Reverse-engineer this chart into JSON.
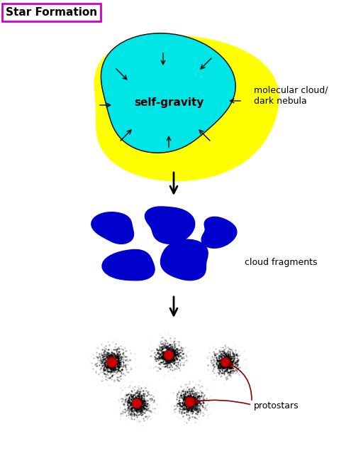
{
  "title": "Star Formation",
  "title_box_color": "#cc00cc",
  "background_color": "#ffffff",
  "yellow_cloud_color": "#ffff00",
  "cyan_cloud_color": "#00e5e5",
  "blue_fragment_color": "#0000cc",
  "protostar_dot_color": "#111111",
  "protostar_core_color": "#cc0000",
  "arrow_color": "#000000",
  "red_arrow_color": "#cc0000",
  "self_gravity_text": "self-gravity",
  "molecular_cloud_text": "molecular cloud/\ndark nebula",
  "cloud_fragments_text": "cloud fragments",
  "protostars_text": "protostars",
  "figsize": [
    4.95,
    6.66
  ],
  "dpi": 100
}
